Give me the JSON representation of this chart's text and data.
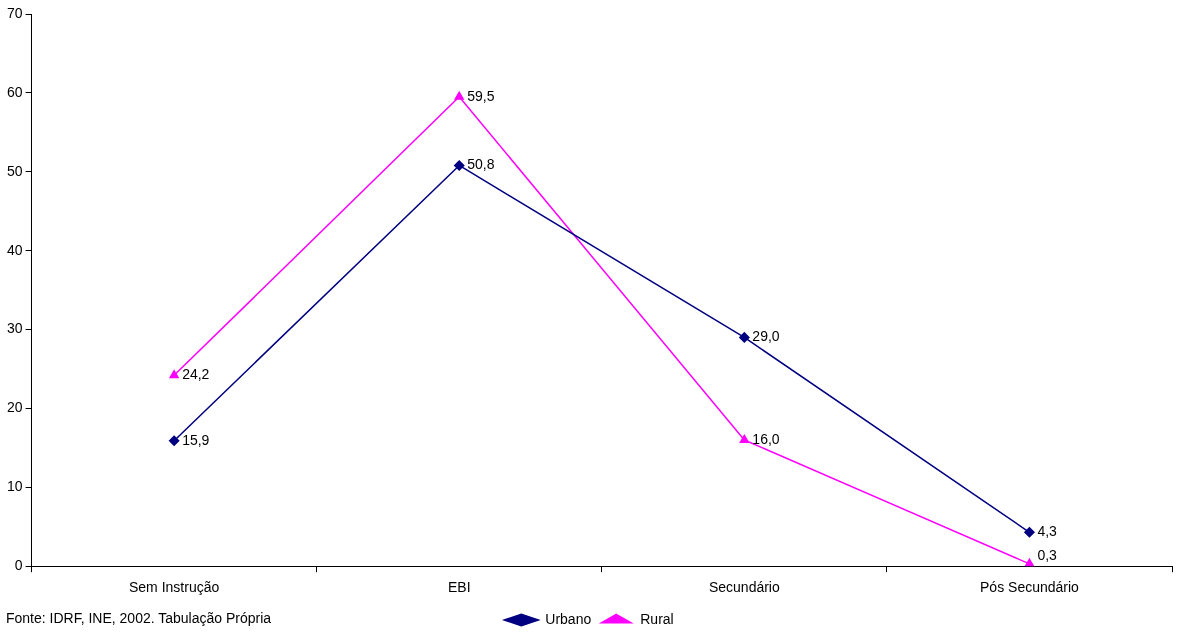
{
  "chart_data": {
    "type": "line",
    "categories": [
      "Sem Instrução",
      "EBI",
      "Secundário",
      "Pós Secundário"
    ],
    "series": [
      {
        "name": "Urbano",
        "color": "#000080",
        "marker": "diamond",
        "values": [
          15.9,
          50.8,
          29.0,
          4.3
        ],
        "value_labels": [
          "15,9",
          "50,8",
          "29,0",
          "4,3"
        ]
      },
      {
        "name": "Rural",
        "color": "#ff00ff",
        "marker": "triangle",
        "values": [
          24.2,
          59.5,
          16.0,
          0.3
        ],
        "value_labels": [
          "24,2",
          "59,5",
          "16,0",
          "0,3"
        ]
      }
    ],
    "ylim": [
      0,
      70
    ],
    "yticks": [
      0,
      10,
      20,
      30,
      40,
      50,
      60,
      70
    ],
    "grid": false,
    "legend": "bottom",
    "annotations": [
      "Fonte: IDRF, INE, 2002. Tabulação Própria"
    ]
  }
}
